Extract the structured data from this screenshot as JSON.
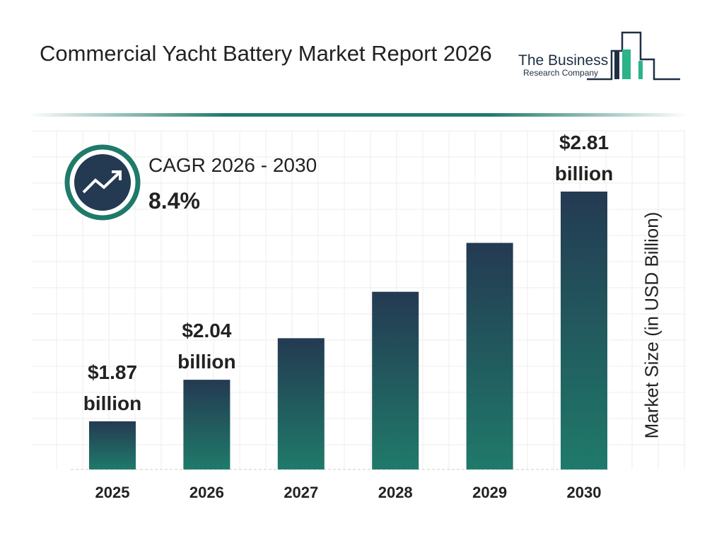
{
  "header": {
    "title": "Commercial Yacht Battery Market Report 2026"
  },
  "logo": {
    "line1": "The Business",
    "line2": "Research Company"
  },
  "cagr": {
    "label": "CAGR 2026 - 2030",
    "value": "8.4%",
    "icon": "trending-up-icon"
  },
  "colors": {
    "bar_top": "#243a52",
    "bar_bottom": "#1f7a6a",
    "accent": "#1f7a6a"
  },
  "chart_data": {
    "type": "bar",
    "categories": [
      "2025",
      "2026",
      "2027",
      "2028",
      "2029",
      "2030"
    ],
    "values": [
      1.87,
      2.04,
      2.21,
      2.4,
      2.6,
      2.81
    ],
    "data_labels": [
      [
        "$1.87",
        "billion"
      ],
      [
        "$2.04",
        "billion"
      ],
      null,
      null,
      null,
      [
        "$2.81",
        "billion"
      ]
    ],
    "ylabel": "Market Size (in USD Billion)",
    "xlabel": "",
    "grid": true
  }
}
